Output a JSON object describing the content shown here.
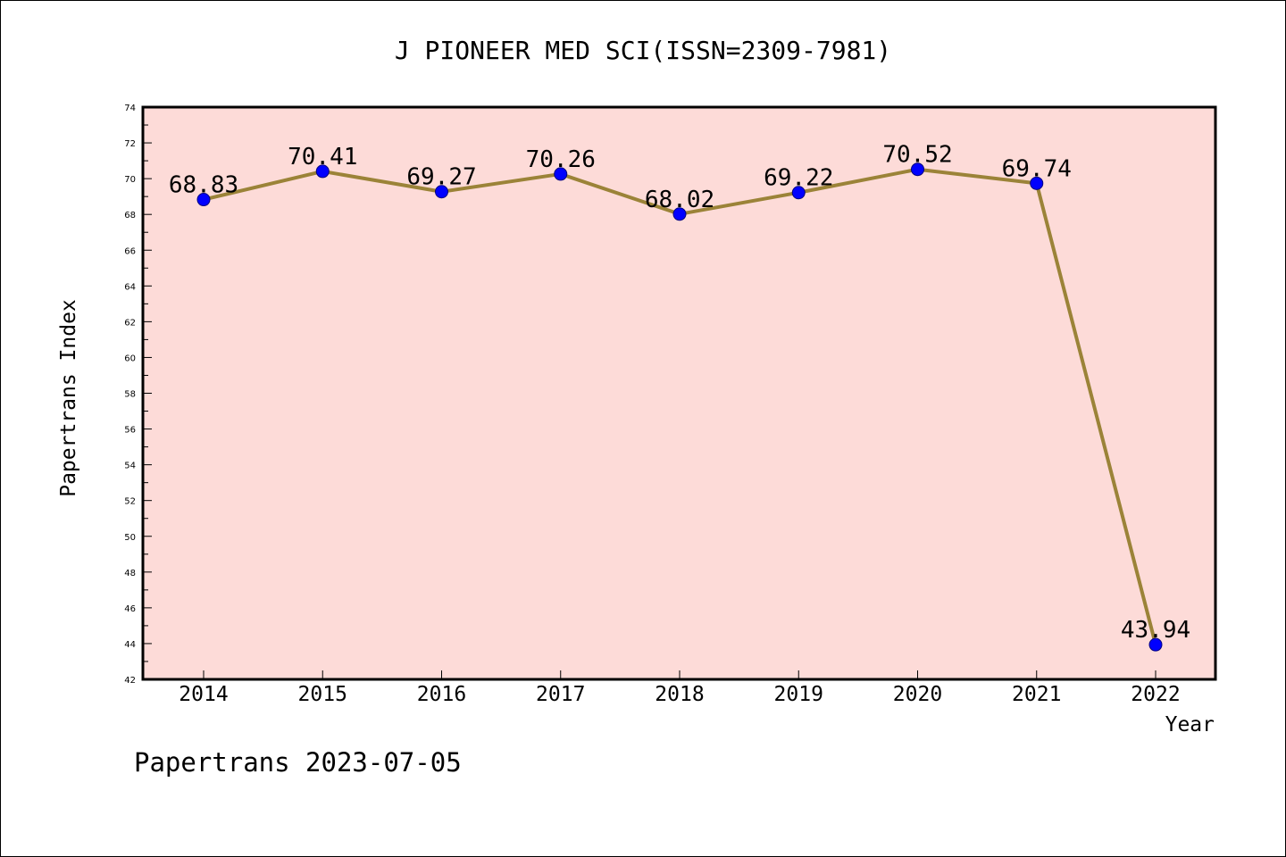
{
  "chart_data": {
    "type": "line",
    "title": "J PIONEER MED SCI(ISSN=2309-7981)",
    "xlabel": "Year",
    "ylabel": "Papertrans Index",
    "categories": [
      "2014",
      "2015",
      "2016",
      "2017",
      "2018",
      "2019",
      "2020",
      "2021",
      "2022"
    ],
    "values": [
      68.83,
      70.41,
      69.27,
      70.26,
      68.02,
      69.22,
      70.52,
      69.74,
      43.94
    ],
    "data_labels": [
      "68.83",
      "70.41",
      "69.27",
      "70.26",
      "68.02",
      "69.22",
      "70.52",
      "69.74",
      "43.94"
    ],
    "ylim": [
      42,
      74
    ],
    "yticks": [
      42,
      44,
      46,
      48,
      50,
      52,
      54,
      56,
      58,
      60,
      62,
      64,
      66,
      68,
      70,
      72,
      74
    ],
    "ytick_labels": [
      "42",
      "44",
      "46",
      "48",
      "50",
      "52",
      "54",
      "56",
      "58",
      "60",
      "62",
      "64",
      "66",
      "68",
      "70",
      "72",
      "74"
    ],
    "grid": false,
    "legend": "none",
    "colors": {
      "plot_background": "#fddbd8",
      "line": "#9b8338",
      "marker_fill": "#0000ff",
      "marker_edge": "#000080"
    }
  },
  "footer": {
    "text": "Papertrans 2023-07-05"
  }
}
